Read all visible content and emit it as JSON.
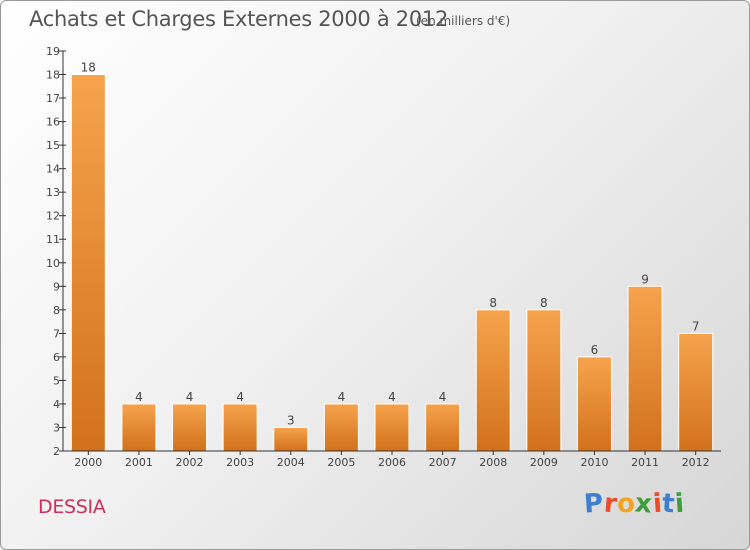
{
  "header": {
    "title": "Achats et Charges Externes 2000 à 2012",
    "unit": "(en milliers d'€)"
  },
  "footer": {
    "commune": "DESSIA",
    "logo_text": "Proxiti"
  },
  "colors": {
    "bar_light": "#f6a34d",
    "bar_dark": "#d2711b",
    "commune_text": "#cc2f5a",
    "logo": [
      "#3f7fd0",
      "#e94d2a",
      "#f2a41c",
      "#3f9d3c",
      "#e94d2a",
      "#3f7fd0",
      "#3f9d3c"
    ]
  },
  "chart_data": {
    "type": "bar",
    "title": "Achats et Charges Externes 2000 à 2012",
    "subtitle": "(en milliers d'€)",
    "categories": [
      "2000",
      "2001",
      "2002",
      "2003",
      "2004",
      "2005",
      "2006",
      "2007",
      "2008",
      "2009",
      "2010",
      "2011",
      "2012"
    ],
    "values": [
      18,
      4,
      4,
      4,
      3,
      4,
      4,
      4,
      8,
      8,
      6,
      9,
      7
    ],
    "ylim": [
      2,
      19
    ],
    "yticks": [
      2,
      3,
      4,
      5,
      6,
      7,
      8,
      9,
      10,
      11,
      12,
      13,
      14,
      15,
      16,
      17,
      18,
      19
    ],
    "grid": false,
    "legend": "none"
  }
}
